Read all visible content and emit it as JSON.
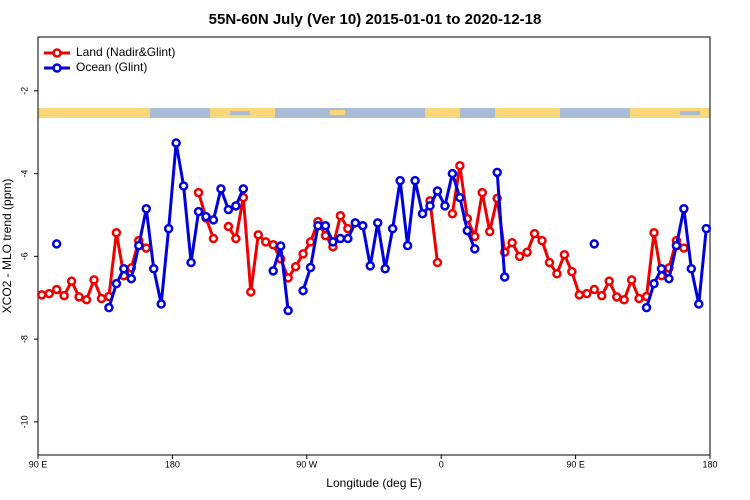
{
  "chart_data": {
    "type": "line",
    "title": "55N-60N July (Ver 10)   2015-01-01 to 2020-12-18",
    "x_label": "Longitude (deg E)",
    "y_label": "XCO2 - MLO trend (ppm)",
    "xlim": [
      90,
      540
    ],
    "ylim": [
      -10.8,
      -0.7
    ],
    "xticks": [
      {
        "value": 90,
        "label": "90 E"
      },
      180,
      {
        "value": 270,
        "label": "90 W"
      },
      {
        "value": 360,
        "label": "0"
      },
      {
        "value": 450,
        "label": "90 E"
      },
      {
        "value": 540,
        "label": "180"
      }
    ],
    "yticks": [
      -2,
      -4,
      -6,
      -8,
      -10
    ],
    "legend": "top-left",
    "x": [
      92.5,
      97.5,
      102.5,
      107.5,
      112.5,
      117.5,
      122.5,
      127.5,
      132.5,
      137.5,
      142.5,
      147.5,
      152.5,
      157.5,
      162.5,
      167.5,
      172.5,
      177.5,
      182.5,
      187.5,
      192.5,
      197.5,
      202.5,
      207.5,
      212.5,
      217.5,
      222.5,
      227.5,
      232.5,
      237.5,
      242.5,
      247.5,
      252.5,
      257.5,
      262.5,
      267.5,
      272.5,
      277.5,
      282.5,
      287.5,
      292.5,
      297.5,
      302.5,
      307.5,
      312.5,
      317.5,
      322.5,
      327.5,
      332.5,
      337.5,
      342.5,
      347.5,
      352.5,
      357.5,
      362.5,
      367.5,
      372.5,
      377.5,
      382.5,
      387.5,
      392.5,
      397.5,
      402.5,
      407.5,
      412.5,
      417.5,
      422.5,
      427.5,
      432.5,
      437.5,
      442.5,
      447.5,
      452.5,
      457.5,
      462.5,
      467.5,
      472.5,
      477.5,
      482.5,
      487.5,
      492.5,
      497.5,
      502.5,
      507.5,
      512.5,
      517.5,
      522.5,
      527.5,
      532.5,
      537.5
    ],
    "series": [
      {
        "name": "Land (Nadir&Glint)",
        "color": "#ee0000",
        "values": [
          -6.93,
          -6.9,
          -6.8,
          -6.95,
          -6.6,
          -6.98,
          -7.05,
          -6.57,
          -7.02,
          -6.97,
          -5.43,
          -6.47,
          -6.28,
          -5.62,
          -5.8,
          null,
          null,
          null,
          null,
          null,
          null,
          -4.46,
          -5.07,
          -5.57,
          null,
          -5.28,
          -5.57,
          -4.58,
          -6.86,
          -5.48,
          -5.65,
          -5.72,
          -6.06,
          -6.52,
          -6.25,
          -5.94,
          -5.65,
          -5.16,
          -5.5,
          -5.77,
          -5.02,
          -5.33,
          null,
          null,
          null,
          null,
          null,
          null,
          null,
          null,
          null,
          null,
          -4.66,
          -6.15,
          null,
          -4.97,
          -3.81,
          -5.09,
          -5.52,
          -4.46,
          -5.4,
          -4.6,
          -5.9,
          -5.67,
          -6.0,
          -5.9,
          -5.45,
          -5.62,
          -6.15,
          -6.42,
          -5.96,
          -6.37,
          -6.93,
          -6.9,
          -6.8,
          -6.95,
          -6.6,
          -6.98,
          -7.05,
          -6.57,
          -7.02,
          -6.97,
          -5.43,
          -6.47,
          -6.28,
          -5.62,
          -5.8,
          null,
          null,
          null
        ]
      },
      {
        "name": "Ocean (Glint)",
        "color": "#0000dd",
        "values": [
          null,
          null,
          -5.7,
          null,
          null,
          null,
          null,
          null,
          null,
          -7.24,
          -6.66,
          -6.3,
          -6.54,
          -5.74,
          -4.85,
          -6.3,
          -7.15,
          -5.33,
          -3.26,
          -4.3,
          -6.15,
          -4.92,
          -5.04,
          -5.12,
          -4.37,
          -4.87,
          -4.78,
          -4.37,
          null,
          null,
          null,
          -6.35,
          -5.75,
          -7.31,
          null,
          -6.83,
          -6.27,
          -5.26,
          -5.26,
          -5.65,
          -5.57,
          -5.57,
          -5.19,
          -5.26,
          -6.23,
          -5.19,
          -6.3,
          -5.33,
          -4.17,
          -5.74,
          -4.17,
          -4.97,
          -4.78,
          -4.42,
          -4.78,
          -4.0,
          -4.58,
          -5.38,
          -5.82,
          null,
          null,
          -3.97,
          -6.5,
          null,
          null,
          null,
          null,
          null,
          null,
          null,
          null,
          null,
          null,
          null,
          -5.7,
          null,
          null,
          null,
          null,
          null,
          null,
          -7.24,
          -6.66,
          -6.3,
          -6.54,
          -5.74,
          -4.85,
          -6.3,
          -7.15,
          -5.33
        ]
      }
    ]
  }
}
